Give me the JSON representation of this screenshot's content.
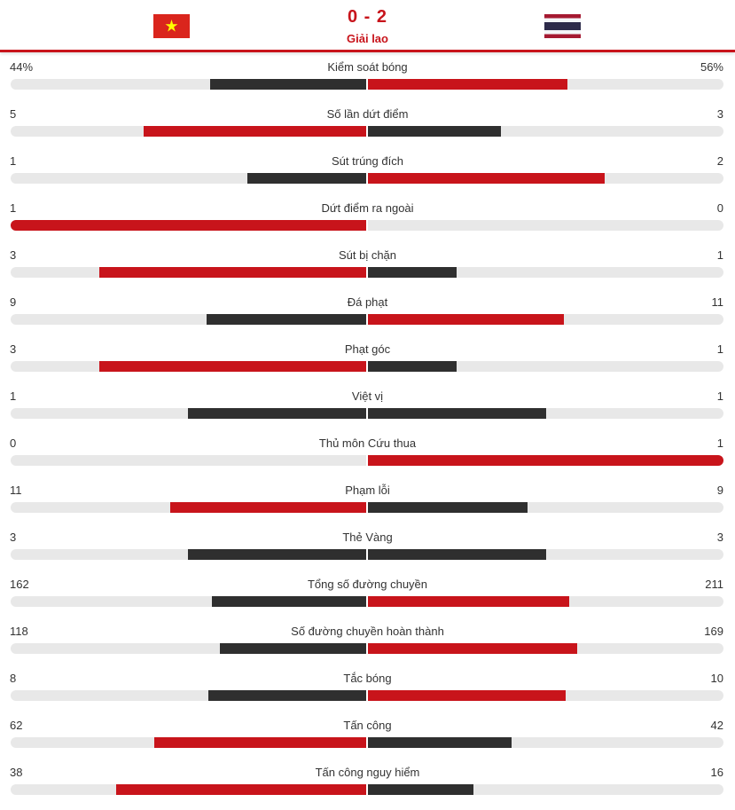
{
  "match": {
    "score": "0 - 2",
    "status": "Giải lao",
    "home_team": {
      "flag_icon": "vietnam-flag-icon"
    },
    "away_team": {
      "flag_icon": "thailand-flag-icon"
    }
  },
  "colors": {
    "accent": "#c8141b",
    "winner_bar": "#c8141b",
    "loser_bar": "#2f2f2f",
    "track": "#e8e8e8"
  },
  "stats": [
    {
      "label": "Kiểm soát bóng",
      "home": "44%",
      "away": "56%",
      "home_value": 44,
      "away_value": 56
    },
    {
      "label": "Số lần dứt điểm",
      "home": "5",
      "away": "3",
      "home_value": 5,
      "away_value": 3
    },
    {
      "label": "Sút trúng đích",
      "home": "1",
      "away": "2",
      "home_value": 1,
      "away_value": 2
    },
    {
      "label": "Dứt điểm ra ngoài",
      "home": "1",
      "away": "0",
      "home_value": 1,
      "away_value": 0
    },
    {
      "label": "Sút bị chặn",
      "home": "3",
      "away": "1",
      "home_value": 3,
      "away_value": 1
    },
    {
      "label": "Đá phạt",
      "home": "9",
      "away": "11",
      "home_value": 9,
      "away_value": 11
    },
    {
      "label": "Phạt góc",
      "home": "3",
      "away": "1",
      "home_value": 3,
      "away_value": 1
    },
    {
      "label": "Việt vị",
      "home": "1",
      "away": "1",
      "home_value": 1,
      "away_value": 1
    },
    {
      "label": "Thủ môn Cứu thua",
      "home": "0",
      "away": "1",
      "home_value": 0,
      "away_value": 1
    },
    {
      "label": "Phạm lỗi",
      "home": "11",
      "away": "9",
      "home_value": 11,
      "away_value": 9
    },
    {
      "label": "Thẻ Vàng",
      "home": "3",
      "away": "3",
      "home_value": 3,
      "away_value": 3
    },
    {
      "label": "Tổng số đường chuyền",
      "home": "162",
      "away": "211",
      "home_value": 162,
      "away_value": 211
    },
    {
      "label": "Số đường chuyền hoàn thành",
      "home": "118",
      "away": "169",
      "home_value": 118,
      "away_value": 169
    },
    {
      "label": "Tắc bóng",
      "home": "8",
      "away": "10",
      "home_value": 8,
      "away_value": 10
    },
    {
      "label": "Tấn công",
      "home": "62",
      "away": "42",
      "home_value": 62,
      "away_value": 42
    },
    {
      "label": "Tấn công nguy hiểm",
      "home": "38",
      "away": "16",
      "home_value": 38,
      "away_value": 16
    }
  ]
}
